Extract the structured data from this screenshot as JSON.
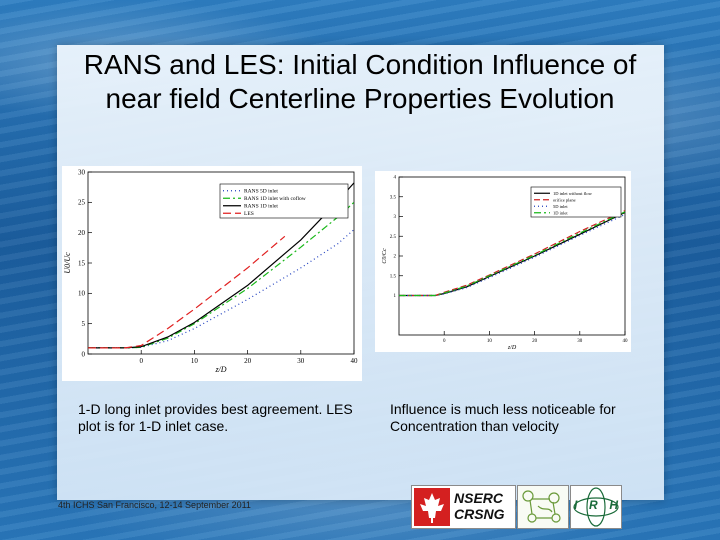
{
  "slide": {
    "title": "RANS and LES: Initial Condition Influence of near field Centerline Properties Evolution",
    "caption_left": "1-D long inlet provides best agreement. LES plot is for 1-D inlet case.",
    "caption_right": "Influence is much less noticeable for Concentration than velocity",
    "footer": "4th ICHS San Francisco, 12-14 September 2011"
  },
  "logos": {
    "nserc_line1": "NSERC",
    "nserc_line2": "CRSNG",
    "irh_letters": [
      "I",
      "R",
      "H"
    ]
  },
  "chart_data": [
    {
      "type": "line",
      "xlabel": "z/D",
      "ylabel": "U0/Uc",
      "xlim": [
        -10,
        40
      ],
      "ylim": [
        0,
        30
      ],
      "xticks": [
        0,
        10,
        20,
        30,
        40
      ],
      "yticks": [
        0,
        5,
        10,
        15,
        20,
        25,
        30
      ],
      "grid": false,
      "legend_position": "top-right",
      "series": [
        {
          "name": "RANS 5D inlet",
          "color": "#1f3fbf",
          "dash": "1 3",
          "x": [
            -10,
            -3,
            0,
            5,
            10,
            20,
            30,
            37,
            40
          ],
          "y": [
            1.0,
            1.0,
            1.1,
            2.2,
            4.2,
            9.0,
            14.2,
            18.2,
            20.5
          ]
        },
        {
          "name": "RANS 1D inlet with coflow",
          "color": "#19b819",
          "dash": "7 3 2 3",
          "x": [
            -10,
            -3,
            0,
            5,
            10,
            20,
            30,
            37,
            40
          ],
          "y": [
            1.0,
            1.0,
            1.1,
            2.6,
            5.0,
            10.8,
            17.6,
            22.6,
            25.0
          ]
        },
        {
          "name": "RANS 1D inlet",
          "color": "#000000",
          "dash": "",
          "x": [
            -10,
            -3,
            0,
            5,
            10,
            20,
            30,
            36,
            40
          ],
          "y": [
            1.0,
            1.0,
            1.2,
            2.8,
            5.2,
            11.3,
            18.8,
            24.3,
            28.2
          ]
        },
        {
          "name": "LES",
          "color": "#e02020",
          "dash": "8 4",
          "x": [
            -10,
            -3,
            0,
            5,
            10,
            20,
            27
          ],
          "y": [
            1.0,
            1.0,
            1.4,
            4.2,
            7.4,
            14.2,
            19.4
          ]
        }
      ]
    },
    {
      "type": "line",
      "xlabel": "z/D",
      "ylabel": "C0/Cc",
      "xlim": [
        -10,
        40
      ],
      "ylim": [
        0,
        4
      ],
      "xticks": [
        0,
        10,
        20,
        30,
        40
      ],
      "yticks": [
        1,
        1.5,
        2,
        2.5,
        3,
        3.5,
        4
      ],
      "grid": false,
      "legend_position": "top-right",
      "series": [
        {
          "name": "1D inlet without flow",
          "color": "#000000",
          "dash": "",
          "x": [
            -10,
            -2,
            0,
            5,
            10,
            20,
            30,
            40
          ],
          "y": [
            1.0,
            1.0,
            1.05,
            1.22,
            1.48,
            2.0,
            2.55,
            3.1
          ]
        },
        {
          "name": "orifice plane",
          "color": "#cc2222",
          "dash": "6 3",
          "x": [
            -10,
            -2,
            0,
            5,
            10,
            20,
            30,
            40
          ],
          "y": [
            1.0,
            1.0,
            1.08,
            1.26,
            1.52,
            2.05,
            2.62,
            3.15
          ]
        },
        {
          "name": "5D inlet",
          "color": "#1f3fbf",
          "dash": "1 3",
          "x": [
            -10,
            -2,
            0,
            5,
            10,
            20,
            30,
            40
          ],
          "y": [
            1.0,
            1.0,
            1.04,
            1.2,
            1.45,
            1.97,
            2.52,
            3.05
          ]
        },
        {
          "name": "1D inlet",
          "color": "#19b819",
          "dash": "7 3 2 3",
          "x": [
            -10,
            -2,
            0,
            5,
            10,
            20,
            30,
            40
          ],
          "y": [
            1.0,
            1.0,
            1.06,
            1.24,
            1.5,
            2.02,
            2.58,
            3.12
          ]
        }
      ]
    }
  ]
}
